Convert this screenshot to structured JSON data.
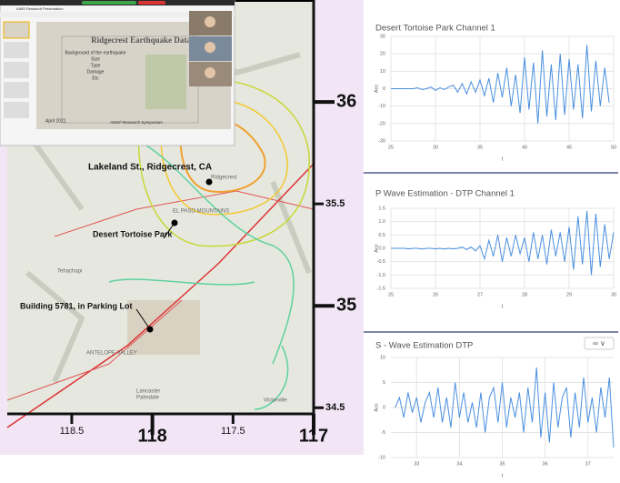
{
  "slide": {
    "window_title": "AIMS Research Presentation",
    "title": "Ridgecrest Earthquake Data",
    "bullets": [
      "Background of the earthquake",
      "Size",
      "Type",
      "Damage",
      "Etc"
    ],
    "date": "April 2021",
    "footer": "AIMS² Research Symposium"
  },
  "map": {
    "xlim": [
      118.9,
      117
    ],
    "ylim": [
      34.47,
      36.5
    ],
    "xticks": [
      118.5,
      118,
      117.5,
      117
    ],
    "yticks": [
      36,
      35.5,
      35,
      34.5
    ],
    "places": [
      "Lakeland St., Ridgecrest, CA",
      "Desert Tortoise Park",
      "Building 5781, in Parking Lot"
    ],
    "towns": [
      "Tehachapi",
      "Lancaster",
      "Palmdale",
      "Victorville",
      "EL PASO MOUNTAINS",
      "ANTELOPE VALLEY",
      "Ridgecrest"
    ]
  },
  "button": "∞ ∨",
  "chart_data": [
    {
      "type": "line",
      "title": "Desert Tortoise Park Channel 1",
      "x_label": "t",
      "y_label": "Acc",
      "color": "#4a8fe0",
      "grid": true,
      "xlim": [
        25,
        50
      ],
      "ylim": [
        -30,
        30
      ],
      "xticks": [
        25,
        30,
        35,
        40,
        45,
        50
      ],
      "yticks": [
        -30,
        -20,
        -10,
        0,
        10,
        20,
        30
      ],
      "x": [
        25,
        25.5,
        26,
        26.5,
        27,
        27.5,
        28,
        28.5,
        29,
        29.5,
        30,
        30.5,
        31,
        31.5,
        32,
        32.5,
        33,
        33.5,
        34,
        34.5,
        35,
        35.5,
        36,
        36.5,
        37,
        37.5,
        38,
        38.5,
        39,
        39.5,
        40,
        40.5,
        41,
        41.5,
        42,
        42.5,
        43,
        43.5,
        44,
        44.5,
        45,
        45.5,
        46,
        46.5,
        47,
        47.5,
        48,
        48.5,
        49,
        49.5
      ],
      "values": [
        0,
        0,
        0,
        0,
        0,
        0,
        0.5,
        -0.5,
        0,
        1,
        -1,
        0.5,
        -0.5,
        1,
        2,
        -2,
        3,
        -3,
        4,
        -2,
        5,
        -4,
        6,
        -8,
        9,
        -5,
        12,
        -10,
        8,
        -14,
        18,
        -12,
        15,
        -20,
        22,
        -16,
        14,
        -18,
        20,
        -15,
        17,
        -12,
        14,
        -17,
        25,
        -13,
        16,
        -10,
        12,
        -8
      ]
    },
    {
      "type": "line",
      "title": "P Wave Estimation - DTP Channel 1",
      "x_label": "t",
      "y_label": "Acc",
      "color": "#4a8fe0",
      "grid": true,
      "xlim": [
        25,
        30
      ],
      "ylim": [
        -1.5,
        1.5
      ],
      "xticks": [
        25,
        26,
        27,
        28,
        29,
        30
      ],
      "yticks": [
        -1.5,
        {
          "value": -1,
          "label": "-1.0"
        },
        -0.5,
        {
          "value": 0,
          "label": "0.0"
        },
        0.5,
        {
          "value": 1,
          "label": "1.0"
        },
        1.5
      ],
      "x": [
        25,
        25.1,
        25.2,
        25.3,
        25.4,
        25.5,
        25.6,
        25.7,
        25.8,
        25.9,
        26,
        26.1,
        26.2,
        26.3,
        26.4,
        26.5,
        26.6,
        26.7,
        26.8,
        26.9,
        27,
        27.1,
        27.2,
        27.3,
        27.4,
        27.5,
        27.6,
        27.7,
        27.8,
        27.9,
        28,
        28.1,
        28.2,
        28.3,
        28.4,
        28.5,
        28.6,
        28.7,
        28.8,
        28.9,
        29,
        29.1,
        29.2,
        29.3,
        29.4,
        29.5,
        29.6,
        29.7,
        29.8,
        29.9,
        30
      ],
      "values": [
        0,
        0,
        0,
        0,
        -0.02,
        0,
        0,
        -0.03,
        0,
        0,
        -0.02,
        0,
        -0.03,
        0,
        -0.02,
        0,
        0.05,
        -0.05,
        0.05,
        -0.1,
        0.1,
        -0.4,
        0.3,
        -0.3,
        0.5,
        -0.5,
        0.4,
        -0.3,
        0.5,
        -0.2,
        0.4,
        -0.5,
        0.6,
        -0.4,
        0.5,
        -0.6,
        0.7,
        -0.3,
        0.6,
        -0.5,
        0.8,
        -0.8,
        1.2,
        -0.6,
        1.4,
        -1.0,
        1.3,
        -0.7,
        0.9,
        -0.4,
        0.6
      ]
    },
    {
      "type": "line",
      "title": "S - Wave Estimation DTP",
      "x_label": "t",
      "y_label": "Acc",
      "color": "#4a8fe0",
      "grid": true,
      "xlim": [
        32.4,
        37.6
      ],
      "ylim": [
        -10,
        10
      ],
      "xticks": [
        33,
        34,
        35,
        36,
        37
      ],
      "yticks": [
        -10,
        -5,
        0,
        5,
        10
      ],
      "x": [
        32.5,
        32.6,
        32.7,
        32.8,
        32.9,
        33,
        33.1,
        33.2,
        33.3,
        33.4,
        33.5,
        33.6,
        33.7,
        33.8,
        33.9,
        34,
        34.1,
        34.2,
        34.3,
        34.4,
        34.5,
        34.6,
        34.7,
        34.8,
        34.9,
        35,
        35.1,
        35.2,
        35.3,
        35.4,
        35.5,
        35.6,
        35.7,
        35.8,
        35.9,
        36,
        36.1,
        36.2,
        36.3,
        36.4,
        36.5,
        36.6,
        36.7,
        36.8,
        36.9,
        37,
        37.1,
        37.2,
        37.3,
        37.4,
        37.5,
        37.6
      ],
      "values": [
        0,
        2,
        -2,
        3,
        -1,
        2,
        -3,
        1,
        3,
        -2,
        4,
        -3,
        2,
        -4,
        5,
        -2,
        3,
        -3,
        1,
        -4,
        3,
        -5,
        2,
        4,
        -3,
        5,
        -4,
        2,
        -2,
        3,
        -5,
        4,
        -3,
        8,
        -6,
        3,
        -7,
        5,
        -4,
        2,
        4,
        -6,
        3,
        -4,
        6,
        -3,
        2,
        -5,
        4,
        -2,
        6,
        -8
      ]
    }
  ]
}
